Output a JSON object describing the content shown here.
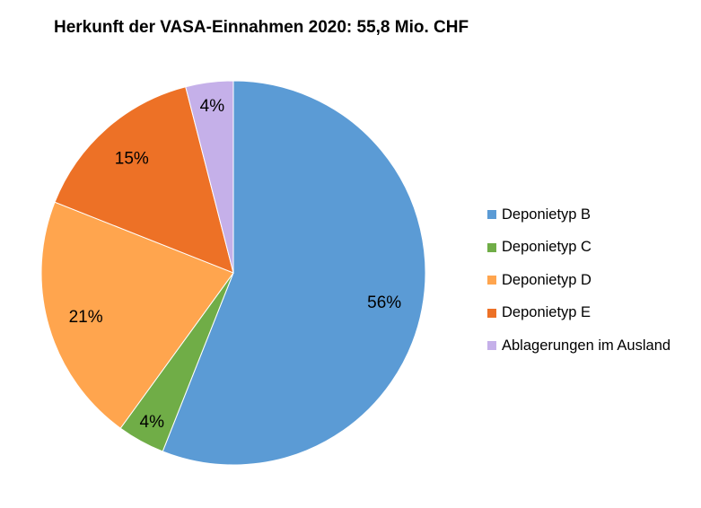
{
  "chart_data": {
    "type": "pie",
    "title": "Herkunft der VASA-Einnahmen 2020: 55,8 Mio. CHF",
    "categories": [
      "Deponietyp B",
      "Deponietyp C",
      "Deponietyp D",
      "Deponietyp E",
      "Ablagerungen im Ausland"
    ],
    "values": [
      56,
      4,
      21,
      15,
      4
    ],
    "data_labels": [
      "56%",
      "4%",
      "21%",
      "15%",
      "4%"
    ],
    "colors": [
      "#5B9BD5",
      "#70AD47",
      "#FFA54E",
      "#ED7126",
      "#C5B0E9"
    ],
    "legend_position": "right"
  }
}
